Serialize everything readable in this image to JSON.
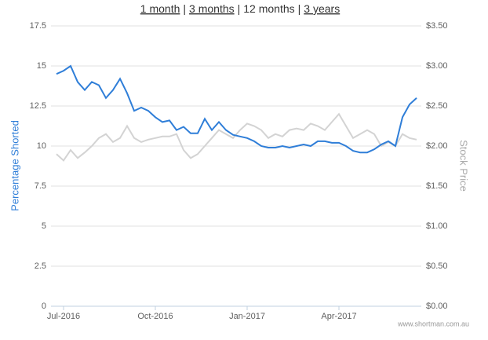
{
  "nav": {
    "links": [
      "1 month",
      "3 months",
      "12 months",
      "3 years"
    ],
    "separator": "|"
  },
  "chart_data": {
    "type": "line",
    "categories": [
      null,
      "Jul-2016",
      null,
      null,
      null,
      null,
      null,
      null,
      null,
      null,
      null,
      null,
      null,
      null,
      "Oct-2016",
      null,
      null,
      null,
      null,
      null,
      null,
      null,
      null,
      null,
      null,
      null,
      null,
      "Jan-2017",
      null,
      null,
      null,
      null,
      null,
      null,
      null,
      null,
      null,
      null,
      null,
      null,
      "Apr-2017",
      null,
      null,
      null,
      null,
      null,
      null,
      null,
      null,
      null,
      null,
      null
    ],
    "series": [
      {
        "name": "Percentage Shorted",
        "color": "#2f7ed8",
        "values": [
          14.5,
          14.7,
          15.0,
          14.0,
          13.5,
          14.0,
          13.8,
          13.0,
          13.5,
          14.2,
          13.3,
          12.2,
          12.4,
          12.2,
          11.8,
          11.5,
          11.6,
          11.0,
          11.2,
          10.8,
          10.8,
          11.7,
          11.0,
          11.5,
          11.0,
          10.7,
          10.6,
          10.5,
          10.3,
          10.0,
          9.9,
          9.9,
          10.0,
          9.9,
          10.0,
          10.1,
          10.0,
          10.3,
          10.3,
          10.2,
          10.2,
          10.0,
          9.7,
          9.6,
          9.6,
          9.8,
          10.1,
          10.3,
          10.0,
          11.8,
          12.6,
          13.0
        ]
      },
      {
        "name": "Stock Price",
        "color": "#d3d3d3",
        "axis": "y2",
        "values": [
          1.9,
          1.82,
          1.95,
          1.85,
          1.92,
          2.0,
          2.1,
          2.15,
          2.05,
          2.1,
          2.25,
          2.1,
          2.05,
          2.08,
          2.1,
          2.12,
          2.12,
          2.15,
          1.95,
          1.85,
          1.9,
          2.0,
          2.1,
          2.2,
          2.15,
          2.1,
          2.2,
          2.28,
          2.25,
          2.2,
          2.1,
          2.15,
          2.12,
          2.2,
          2.22,
          2.2,
          2.28,
          2.25,
          2.2,
          2.3,
          2.4,
          2.25,
          2.1,
          2.15,
          2.2,
          2.15,
          2.0,
          2.05,
          2.0,
          2.15,
          2.1,
          2.08
        ]
      }
    ],
    "ylim": [
      0,
      17.5
    ],
    "yticks": [
      0,
      2.5,
      5,
      7.5,
      10,
      12.5,
      15,
      17.5
    ],
    "y2lim": [
      0,
      3.5
    ],
    "y2ticks": [
      {
        "value": 0,
        "label": "$0.00"
      },
      {
        "value": 0.5,
        "label": "$0.50"
      },
      {
        "value": 1,
        "label": "$1.00"
      },
      {
        "value": 1.5,
        "label": "$1.50"
      },
      {
        "value": 2,
        "label": "$2.00"
      },
      {
        "value": 2.5,
        "label": "$2.50"
      },
      {
        "value": 3,
        "label": "$3.00"
      },
      {
        "value": 3.5,
        "label": "$3.50"
      }
    ],
    "grid": true,
    "credit": "www.shortman.com.au"
  }
}
